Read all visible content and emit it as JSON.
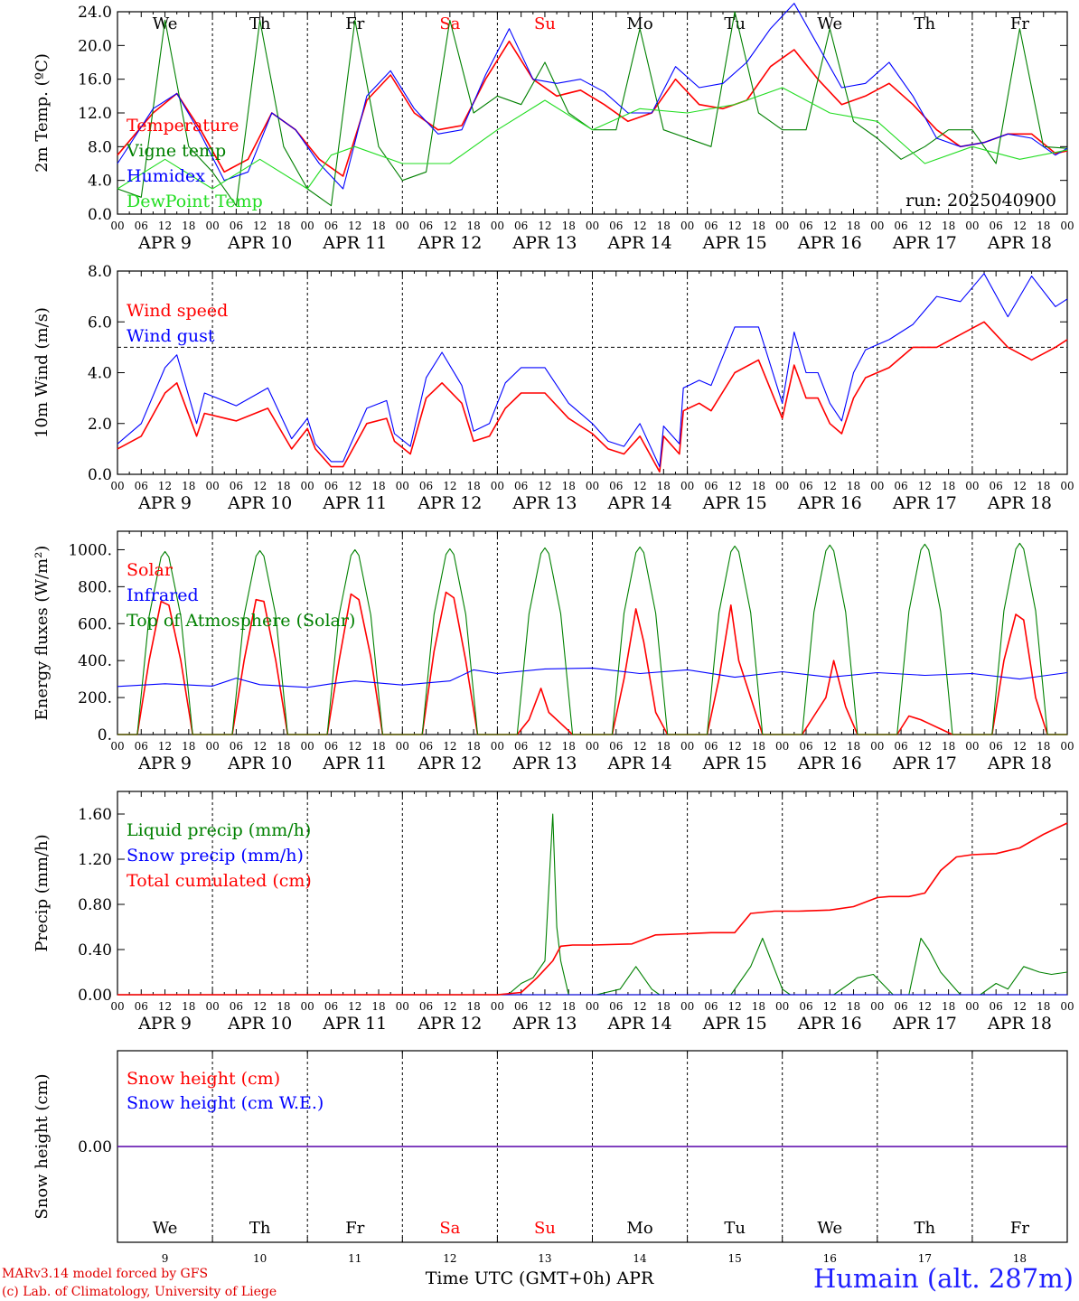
{
  "run_label": "run: 2025040900",
  "hour_ticks": [
    "00",
    "06",
    "12",
    "18"
  ],
  "day_labels": [
    "APR  9",
    "APR 10",
    "APR 11",
    "APR 12",
    "APR 13",
    "APR 14",
    "APR 15",
    "APR 16",
    "APR 17",
    "APR 18"
  ],
  "weekdays": [
    "We",
    "Th",
    "Fr",
    "Sa",
    "Su",
    "Mo",
    "Tu",
    "We",
    "Th",
    "Fr"
  ],
  "weekday_colors": [
    "#000000",
    "#000000",
    "#000000",
    "#ff0000",
    "#ff0000",
    "#000000",
    "#000000",
    "#000000",
    "#000000",
    "#000000"
  ],
  "day_numbers": [
    "9",
    "10",
    "11",
    "12",
    "13",
    "14",
    "15",
    "16",
    "17",
    "18"
  ],
  "footer": {
    "line1": "MARv3.14 model forced by GFS",
    "line2": "(c) Lab. of Climatology, University of Liege",
    "x_axis_title": "Time UTC (GMT+0h) APR",
    "station": "Humain (alt. 287m)"
  },
  "colors": {
    "red": "#ff0000",
    "green": "#008000",
    "blue": "#0000ff",
    "light_green": "#22dd22"
  },
  "chart_data": [
    {
      "type": "line",
      "panel": "temperature",
      "ylabel": "2m Temp. (ºC)",
      "ylim": [
        0,
        24
      ],
      "yticks": [
        "0.0",
        "4.0",
        "8.0",
        "12.0",
        "16.0",
        "20.0",
        "24.0"
      ],
      "x_unit": "hours since APR 9 00 UTC",
      "xlim": [
        0,
        240
      ],
      "series": [
        {
          "name": "Temperature",
          "color": "#ff0000",
          "x": [
            0,
            9,
            15,
            21,
            27,
            33,
            39,
            45,
            51,
            57,
            63,
            69,
            75,
            81,
            87,
            93,
            99,
            105,
            111,
            117,
            123,
            129,
            135,
            141,
            147,
            153,
            159,
            165,
            171,
            177,
            183,
            189,
            195,
            201,
            207,
            213,
            219,
            225,
            231,
            237,
            240
          ],
          "y": [
            7,
            12,
            14.3,
            10,
            5,
            6.5,
            12,
            10,
            6.5,
            4.5,
            13.5,
            16.5,
            12,
            10,
            10.5,
            16,
            20.5,
            16,
            14,
            14.7,
            13,
            11,
            12,
            16,
            13,
            12.5,
            13.5,
            17.5,
            19.5,
            16,
            13,
            14,
            15.5,
            13,
            10,
            8,
            8.5,
            9.5,
            9.5,
            7.2,
            7.5
          ]
        },
        {
          "name": "Vigne temp",
          "color": "#008000",
          "x": [
            0,
            6,
            12,
            18,
            24,
            30,
            36,
            42,
            48,
            54,
            60,
            66,
            72,
            78,
            84,
            90,
            96,
            102,
            108,
            114,
            120,
            126,
            132,
            138,
            144,
            150,
            156,
            162,
            168,
            174,
            180,
            186,
            192,
            198,
            204,
            210,
            216,
            222,
            228,
            234,
            240
          ],
          "y": [
            3,
            2,
            23,
            8,
            5,
            1,
            23,
            8,
            3,
            1,
            23,
            8,
            4,
            5,
            23,
            12,
            14,
            13,
            18,
            12,
            10,
            10,
            22,
            10,
            9,
            8,
            24,
            12,
            10,
            10,
            22,
            11,
            9,
            6.5,
            8,
            10,
            10,
            6,
            22,
            8,
            7.8
          ]
        },
        {
          "name": "Humidex",
          "color": "#0000ff",
          "x": [
            0,
            9,
            15,
            21,
            27,
            33,
            39,
            45,
            51,
            57,
            63,
            69,
            75,
            81,
            87,
            93,
            99,
            105,
            111,
            117,
            123,
            129,
            135,
            141,
            147,
            153,
            159,
            165,
            171,
            177,
            183,
            189,
            195,
            201,
            207,
            213,
            219,
            225,
            231,
            237,
            240
          ],
          "y": [
            6,
            12.5,
            14.3,
            9.5,
            4,
            5,
            12,
            10,
            6,
            3,
            14,
            17,
            12.5,
            9.5,
            10,
            16.5,
            22,
            16,
            15.5,
            16,
            14.5,
            12,
            12,
            17.5,
            15,
            15.5,
            18,
            22,
            25,
            20,
            15,
            15.5,
            18,
            14,
            9,
            8,
            8.5,
            9.5,
            9,
            7,
            7.8
          ]
        },
        {
          "name": "DewPoint Temp",
          "color": "#22dd22",
          "x": [
            0,
            12,
            24,
            36,
            48,
            54,
            60,
            72,
            84,
            96,
            108,
            120,
            132,
            144,
            156,
            168,
            180,
            192,
            204,
            216,
            228,
            240
          ],
          "y": [
            3,
            6.5,
            3,
            6.5,
            3,
            7,
            8,
            6,
            6,
            10,
            13.5,
            10,
            12.5,
            12,
            13,
            15,
            12,
            11,
            6,
            8,
            6.5,
            7.6
          ]
        }
      ]
    },
    {
      "type": "line",
      "panel": "wind",
      "ylabel": "10m Wind (m/s)",
      "ylim": [
        0,
        8
      ],
      "yticks": [
        "0.0",
        "2.0",
        "4.0",
        "6.0",
        "8.0"
      ],
      "reference_line": 5,
      "x_unit": "hours since APR 9 00 UTC",
      "xlim": [
        0,
        240
      ],
      "series": [
        {
          "name": "Wind speed",
          "color": "#ff0000",
          "x": [
            0,
            6,
            12,
            15,
            20,
            22,
            30,
            38,
            44,
            48,
            50,
            54,
            57,
            63,
            68,
            70,
            74,
            78,
            82,
            87,
            90,
            94,
            98,
            102,
            108,
            114,
            120,
            124,
            128,
            132,
            137,
            138,
            142,
            143,
            147,
            150,
            156,
            162,
            168,
            171,
            174,
            177,
            180,
            183,
            186,
            189,
            195,
            201,
            207,
            213,
            219,
            225,
            231,
            237,
            240
          ],
          "y": [
            1,
            1.5,
            3.2,
            3.6,
            1.5,
            2.4,
            2.1,
            2.6,
            1,
            1.8,
            1,
            0.3,
            0.3,
            2,
            2.2,
            1.3,
            0.8,
            3,
            3.6,
            2.8,
            1.3,
            1.5,
            2.6,
            3.2,
            3.2,
            2.2,
            1.6,
            1,
            0.8,
            1.5,
            0.1,
            1.5,
            0.8,
            2.5,
            2.8,
            2.5,
            4,
            4.5,
            2.2,
            4.3,
            3,
            3,
            2,
            1.6,
            3,
            3.8,
            4.2,
            5,
            5,
            5.5,
            6,
            5,
            4.5,
            5,
            5.3
          ]
        },
        {
          "name": "Wind gust",
          "color": "#0000ff",
          "x": [
            0,
            6,
            12,
            15,
            20,
            22,
            30,
            38,
            44,
            48,
            50,
            54,
            57,
            63,
            68,
            70,
            74,
            78,
            82,
            87,
            90,
            94,
            98,
            102,
            108,
            114,
            120,
            124,
            128,
            132,
            137,
            138,
            142,
            143,
            147,
            150,
            156,
            162,
            168,
            171,
            174,
            177,
            180,
            183,
            186,
            189,
            195,
            201,
            207,
            213,
            219,
            225,
            231,
            237,
            240
          ],
          "y": [
            1.2,
            2,
            4.2,
            4.7,
            2,
            3.2,
            2.7,
            3.4,
            1.4,
            2.2,
            1.2,
            0.5,
            0.5,
            2.6,
            2.9,
            1.6,
            1.1,
            3.8,
            4.8,
            3.5,
            1.7,
            2,
            3.6,
            4.2,
            4.2,
            2.8,
            2,
            1.3,
            1.1,
            2,
            0.3,
            1.9,
            1.2,
            3.4,
            3.7,
            3.5,
            5.8,
            5.8,
            2.8,
            5.6,
            4,
            4,
            2.8,
            2.1,
            4,
            4.9,
            5.3,
            5.9,
            7,
            6.8,
            7.9,
            6.2,
            7.8,
            6.6,
            6.9
          ]
        }
      ]
    },
    {
      "type": "line",
      "panel": "energy",
      "ylabel": "Energy fluxes (W/m²)",
      "ylim": [
        0,
        1100
      ],
      "yticks": [
        "0.",
        "200.",
        "400.",
        "600.",
        "800.",
        "1000."
      ],
      "x_unit": "hours since APR 9 00 UTC",
      "xlim": [
        0,
        240
      ],
      "series": [
        {
          "name": "Solar",
          "color": "#ff0000",
          "x": [
            0,
            5,
            8,
            11,
            13,
            16,
            19,
            29,
            32,
            35,
            37,
            40,
            43,
            53,
            56,
            59,
            61,
            64,
            67,
            77,
            80,
            83,
            85,
            88,
            91,
            101,
            104,
            107,
            109,
            112,
            115,
            125,
            128,
            131,
            133,
            136,
            139,
            149,
            152,
            155,
            157,
            160,
            163,
            173,
            176,
            179,
            181,
            184,
            187,
            197,
            200,
            203,
            205,
            208,
            211,
            221,
            224,
            227,
            229,
            232,
            235,
            240
          ],
          "y": [
            0,
            0,
            400,
            720,
            700,
            400,
            0,
            0,
            400,
            730,
            720,
            400,
            0,
            0,
            400,
            760,
            730,
            420,
            0,
            0,
            450,
            770,
            740,
            400,
            0,
            0,
            80,
            250,
            120,
            60,
            0,
            0,
            300,
            680,
            500,
            120,
            0,
            0,
            300,
            700,
            400,
            200,
            0,
            0,
            100,
            200,
            400,
            150,
            0,
            0,
            100,
            80,
            60,
            30,
            0,
            0,
            400,
            650,
            620,
            200,
            0,
            0
          ]
        },
        {
          "name": "Infrared",
          "color": "#0000ff",
          "x": [
            0,
            12,
            24,
            30,
            36,
            48,
            54,
            60,
            72,
            84,
            90,
            96,
            108,
            120,
            132,
            144,
            156,
            168,
            180,
            192,
            204,
            216,
            228,
            240
          ],
          "y": [
            260,
            275,
            262,
            305,
            270,
            255,
            275,
            290,
            268,
            290,
            350,
            330,
            355,
            360,
            330,
            350,
            310,
            340,
            310,
            335,
            320,
            330,
            300,
            335
          ]
        },
        {
          "name": "Top of Atmosphere (Solar)",
          "color": "#008000",
          "x": [
            0,
            5,
            8,
            11,
            12,
            13,
            16,
            19,
            24
          ],
          "y": [
            0,
            0,
            640,
            960,
            990,
            960,
            640,
            0,
            0
          ],
          "daily_peaks": [
            990,
            995,
            1000,
            1005,
            1010,
            1015,
            1020,
            1025,
            1030,
            1035
          ]
        }
      ]
    },
    {
      "type": "line",
      "panel": "precip",
      "ylabel": "Precip (mm/h)",
      "ylim": [
        0,
        1.8
      ],
      "yticks": [
        "0.00",
        "0.40",
        "0.80",
        "1.20",
        "1.60"
      ],
      "x_unit": "hours since APR 9 00 UTC",
      "xlim": [
        0,
        240
      ],
      "series": [
        {
          "name": "Liquid precip (mm/h)",
          "color": "#008000",
          "x": [
            0,
            96,
            99,
            102,
            105,
            108,
            110,
            111,
            112,
            114,
            116,
            121,
            127,
            131,
            135,
            137,
            143,
            155,
            160,
            163,
            168,
            170,
            181,
            187,
            191,
            196,
            200,
            203,
            205,
            208,
            213,
            218,
            222,
            225,
            229,
            233,
            236,
            240
          ],
          "y": [
            0,
            0,
            0.01,
            0.1,
            0.15,
            0.3,
            1.6,
            0.6,
            0.3,
            0,
            0,
            0,
            0.05,
            0.25,
            0.05,
            0,
            0,
            0,
            0.25,
            0.5,
            0.05,
            0,
            0,
            0.15,
            0.18,
            0,
            0,
            0.5,
            0.4,
            0.2,
            0,
            0,
            0.1,
            0.05,
            0.25,
            0.2,
            0.18,
            0.2
          ]
        },
        {
          "name": "Snow precip (mm/h)",
          "color": "#0000ff",
          "x": [
            0,
            240
          ],
          "y": [
            0,
            0
          ]
        },
        {
          "name": "Total cumulated (cm)",
          "color": "#ff0000",
          "x": [
            0,
            96,
            102,
            106,
            110,
            112,
            115,
            120,
            130,
            136,
            144,
            150,
            156,
            160,
            166,
            172,
            180,
            186,
            192,
            195,
            200,
            204,
            208,
            212,
            216,
            222,
            228,
            234,
            240
          ],
          "y": [
            0,
            0,
            0.02,
            0.15,
            0.3,
            0.43,
            0.44,
            0.44,
            0.45,
            0.53,
            0.54,
            0.55,
            0.55,
            0.72,
            0.74,
            0.74,
            0.75,
            0.78,
            0.86,
            0.87,
            0.87,
            0.9,
            1.1,
            1.22,
            1.24,
            1.25,
            1.3,
            1.42,
            1.52
          ]
        }
      ]
    },
    {
      "type": "line",
      "panel": "snow",
      "ylabel": "Snow height (cm)",
      "ylim": [
        -1,
        1
      ],
      "yticks": [
        "0.00"
      ],
      "x_unit": "hours since APR 9 00 UTC",
      "xlim": [
        0,
        240
      ],
      "series": [
        {
          "name": "Snow height (cm)",
          "color": "#ff0000",
          "x": [
            0,
            240
          ],
          "y": [
            0,
            0
          ]
        },
        {
          "name": "Snow height (cm W.E.)",
          "color": "#0000ff",
          "x": [
            0,
            240
          ],
          "y": [
            0,
            0
          ]
        }
      ]
    }
  ]
}
